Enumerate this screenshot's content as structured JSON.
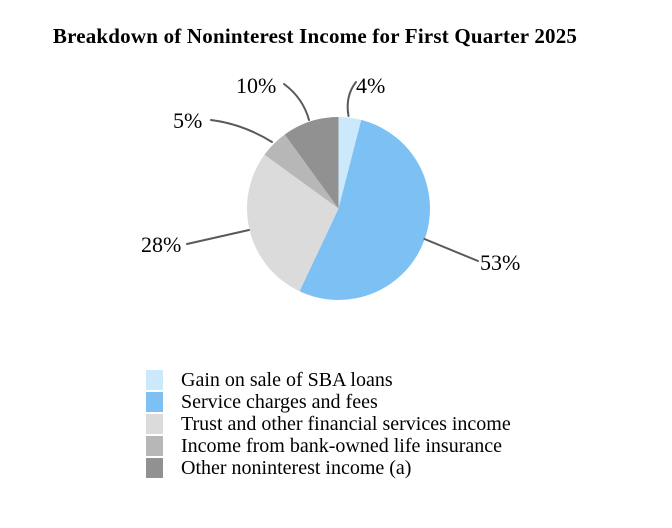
{
  "title": "Breakdown of Noninterest Income for First Quarter 2025",
  "chart_data": {
    "type": "pie",
    "title": "Breakdown of Noninterest Income for First Quarter 2025",
    "unit": "percent",
    "start_angle_deg": 0,
    "direction": "clockwise",
    "slices": [
      {
        "label": "Gain on sale of SBA loans",
        "value": 4,
        "pct_label": "4%",
        "color": "#cce9fb"
      },
      {
        "label": "Service charges and fees",
        "value": 53,
        "pct_label": "53%",
        "color": "#7cc0f4"
      },
      {
        "label": "Trust and other financial services income",
        "value": 28,
        "pct_label": "28%",
        "color": "#dbdbdb"
      },
      {
        "label": "Income from bank-owned life insurance",
        "value": 5,
        "pct_label": "5%",
        "color": "#b7b7b7"
      },
      {
        "label": "Other noninterest income (a)",
        "value": 10,
        "pct_label": "10%",
        "color": "#919191"
      }
    ],
    "legend_position": "bottom-left",
    "leader_line_color": "#595959",
    "text_color": "#000000",
    "background_color": "#ffffff"
  }
}
